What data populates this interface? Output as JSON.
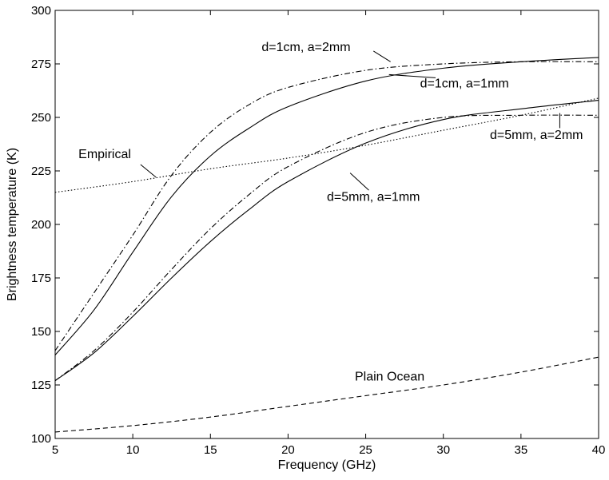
{
  "chart_data": {
    "type": "line",
    "title": "",
    "xlabel": "Frequency (GHz)",
    "ylabel": "Brightness temperature (K)",
    "xlim": [
      5,
      40
    ],
    "ylim": [
      100,
      300
    ],
    "xticks": [
      5,
      10,
      15,
      20,
      25,
      30,
      35,
      40
    ],
    "yticks": [
      100,
      125,
      150,
      175,
      200,
      225,
      250,
      275,
      300
    ],
    "grid": false,
    "legend": "none",
    "series": [
      {
        "name": "d=1cm, a=2mm",
        "style": "dashdot",
        "x": [
          5,
          7.5,
          10,
          12.5,
          15,
          17.5,
          20,
          25,
          30,
          35,
          40
        ],
        "y": [
          141,
          168,
          195,
          223,
          243,
          256,
          264,
          272,
          275,
          276,
          276
        ]
      },
      {
        "name": "d=1cm, a=1mm",
        "style": "solid",
        "x": [
          5,
          7.5,
          10,
          12.5,
          15,
          17.5,
          20,
          25,
          30,
          35,
          40
        ],
        "y": [
          139,
          160,
          187,
          213,
          232,
          245,
          255,
          267,
          273,
          276,
          278
        ]
      },
      {
        "name": "d=5mm, a=2mm",
        "style": "dashdot",
        "x": [
          5,
          7.5,
          10,
          12.5,
          15,
          17.5,
          20,
          25,
          30,
          35,
          40
        ],
        "y": [
          127,
          141,
          159,
          179,
          198,
          214,
          227,
          243,
          250,
          251,
          251
        ]
      },
      {
        "name": "d=5mm, a=1mm",
        "style": "solid",
        "x": [
          5,
          7.5,
          10,
          12.5,
          15,
          17.5,
          20,
          25,
          30,
          35,
          40
        ],
        "y": [
          127,
          140,
          157,
          175,
          192,
          207,
          220,
          238,
          249,
          254,
          258
        ]
      },
      {
        "name": "Empirical",
        "style": "dotted",
        "x": [
          5,
          10,
          15,
          20,
          25,
          30,
          35,
          40
        ],
        "y": [
          215,
          220,
          226,
          231,
          237,
          244,
          251,
          259
        ]
      },
      {
        "name": "Plain Ocean",
        "style": "dashed",
        "x": [
          5,
          10,
          15,
          20,
          25,
          30,
          35,
          40
        ],
        "y": [
          103,
          106,
          110,
          115,
          120,
          125,
          131,
          138
        ]
      }
    ],
    "annotations": [
      {
        "text": "d=1cm, a=2mm",
        "pos": [
          18.3,
          281
        ],
        "anchor": "start",
        "pointer": [
          [
            25.5,
            281
          ],
          [
            26.6,
            276
          ]
        ]
      },
      {
        "text": "d=1cm, a=1mm",
        "pos": [
          28.5,
          264
        ],
        "anchor": "start",
        "pointer": [
          [
            29.5,
            268.5
          ],
          [
            26.5,
            270
          ]
        ]
      },
      {
        "text": "Empirical",
        "pos": [
          6.5,
          231
        ],
        "anchor": "start",
        "pointer": [
          [
            10.5,
            228
          ],
          [
            11.5,
            222
          ]
        ]
      },
      {
        "text": "d=5mm, a=2mm",
        "pos": [
          33.0,
          240
        ],
        "anchor": "start",
        "pointer": [
          [
            37.5,
            245
          ],
          [
            37.5,
            252
          ]
        ]
      },
      {
        "text": "d=5mm, a=1mm",
        "pos": [
          22.5,
          211
        ],
        "anchor": "start",
        "pointer": [
          [
            25.2,
            216
          ],
          [
            24.0,
            224
          ]
        ]
      },
      {
        "text": "Plain Ocean",
        "pos": [
          24.3,
          127
        ],
        "anchor": "start",
        "pointer": null
      }
    ]
  }
}
